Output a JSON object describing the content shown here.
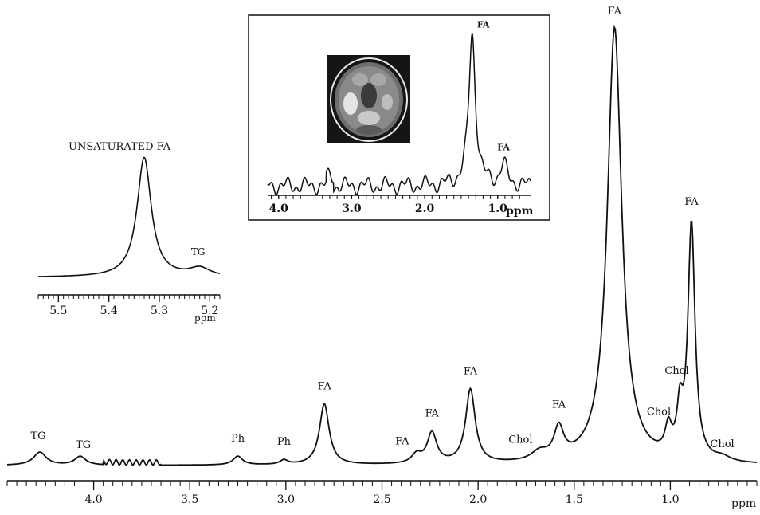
{
  "chart_data": [
    {
      "type": "line",
      "panel": "main",
      "xlabel": "ppm",
      "x_reversed": true,
      "xlim": [
        4.45,
        0.55
      ],
      "x_tick_labels": [
        "4.0",
        "3.5",
        "3.0",
        "2.5",
        "2.0",
        "1.5",
        "1.0"
      ],
      "x_ticks": [
        4.0,
        3.5,
        3.0,
        2.5,
        2.0,
        1.5,
        1.0
      ],
      "peaks": [
        {
          "label": "TG",
          "ppm": 4.28,
          "height": 0.03
        },
        {
          "label": "TG",
          "ppm": 4.07,
          "height": 0.02
        },
        {
          "label": "Ph",
          "ppm": 3.25,
          "height": 0.02
        },
        {
          "label": "Ph",
          "ppm": 3.01,
          "height": 0.01
        },
        {
          "label": "FA",
          "ppm": 2.8,
          "height": 0.14
        },
        {
          "label": "FA",
          "ppm": 2.32,
          "height": 0.02
        },
        {
          "label": "FA",
          "ppm": 2.24,
          "height": 0.07
        },
        {
          "label": "FA",
          "ppm": 2.04,
          "height": 0.17
        },
        {
          "label": "Chol",
          "ppm": 1.68,
          "height": 0.02
        },
        {
          "label": "FA",
          "ppm": 1.58,
          "height": 0.07
        },
        {
          "label": "FA",
          "ppm": 1.29,
          "height": 1.0
        },
        {
          "label": "Chol",
          "ppm": 1.01,
          "height": 0.06
        },
        {
          "label": "Chol",
          "ppm": 0.95,
          "height": 0.1
        },
        {
          "label": "FA",
          "ppm": 0.89,
          "height": 0.54
        },
        {
          "label": "Chol",
          "ppm": 0.73,
          "height": 0.01
        }
      ]
    },
    {
      "type": "line",
      "panel": "inset-left",
      "title": "UNSATURATED FA",
      "xlabel": "ppm",
      "x_reversed": true,
      "xlim": [
        5.54,
        5.18
      ],
      "x_tick_labels": [
        "5.5",
        "5.4",
        "5.3",
        "5.2"
      ],
      "x_ticks": [
        5.5,
        5.4,
        5.3,
        5.2
      ],
      "peaks": [
        {
          "label": "UNSATURATED FA",
          "ppm": 5.33,
          "height": 1.0
        },
        {
          "label": "TG",
          "ppm": 5.22,
          "height": 0.07
        }
      ]
    },
    {
      "type": "line",
      "panel": "inset-top",
      "xlabel": "ppm",
      "x_reversed": true,
      "xlim": [
        4.15,
        0.55
      ],
      "x_tick_labels": [
        "4.0",
        "3.0",
        "2.0",
        "1.0"
      ],
      "x_ticks": [
        4.0,
        3.0,
        2.0,
        1.0
      ],
      "peaks": [
        {
          "label": "FA",
          "ppm": 1.35,
          "height": 1.0
        },
        {
          "label": "FA",
          "ppm": 0.92,
          "height": 0.13
        }
      ]
    }
  ]
}
